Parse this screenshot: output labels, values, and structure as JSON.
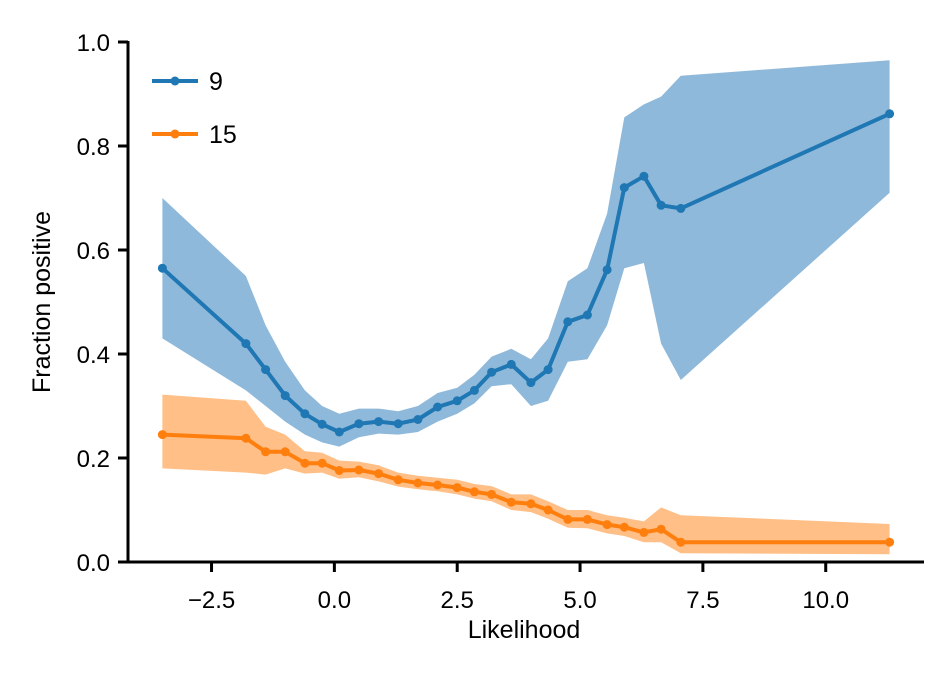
{
  "chart_data": {
    "type": "line",
    "xlabel": "Likelihood",
    "ylabel": "Fraction positive",
    "xlim": [
      -4.2,
      12.0
    ],
    "ylim": [
      0.0,
      1.0
    ],
    "xticks": [
      -2.5,
      0.0,
      2.5,
      5.0,
      7.5,
      10.0
    ],
    "xtick_labels": [
      "−2.5",
      "0.0",
      "2.5",
      "5.0",
      "7.5",
      "10.0"
    ],
    "yticks": [
      0.0,
      0.2,
      0.4,
      0.6,
      0.8,
      1.0
    ],
    "ytick_labels": [
      "0.0",
      "0.2",
      "0.4",
      "0.6",
      "0.8",
      "1.0"
    ],
    "grid": false,
    "legend_position": "top-left",
    "series": [
      {
        "name": "9",
        "color": "#1f77b4",
        "band_color": "#8fb9da",
        "x": [
          -3.5,
          -1.8,
          -1.4,
          -1.0,
          -0.6,
          -0.25,
          0.1,
          0.5,
          0.9,
          1.3,
          1.7,
          2.1,
          2.5,
          2.85,
          3.2,
          3.6,
          4.0,
          4.35,
          4.75,
          5.15,
          5.55,
          5.9,
          6.3,
          6.65,
          7.05,
          11.3
        ],
        "y": [
          0.565,
          0.42,
          0.37,
          0.32,
          0.285,
          0.265,
          0.25,
          0.266,
          0.27,
          0.266,
          0.274,
          0.298,
          0.31,
          0.33,
          0.365,
          0.38,
          0.345,
          0.37,
          0.462,
          0.475,
          0.562,
          0.72,
          0.742,
          0.686,
          0.68,
          0.862
        ],
        "lower": [
          0.43,
          0.33,
          0.3,
          0.27,
          0.245,
          0.23,
          0.222,
          0.24,
          0.247,
          0.245,
          0.25,
          0.27,
          0.285,
          0.305,
          0.338,
          0.342,
          0.3,
          0.31,
          0.385,
          0.39,
          0.455,
          0.565,
          0.575,
          0.42,
          0.35,
          0.71
        ],
        "upper": [
          0.7,
          0.55,
          0.455,
          0.385,
          0.33,
          0.3,
          0.285,
          0.295,
          0.295,
          0.29,
          0.3,
          0.325,
          0.335,
          0.36,
          0.395,
          0.41,
          0.39,
          0.43,
          0.54,
          0.565,
          0.67,
          0.855,
          0.88,
          0.895,
          0.935,
          0.965
        ]
      },
      {
        "name": "15",
        "color": "#ff7f0e",
        "band_color": "#ffbf86",
        "x": [
          -3.5,
          -1.8,
          -1.4,
          -1.0,
          -0.6,
          -0.25,
          0.1,
          0.5,
          0.9,
          1.3,
          1.7,
          2.1,
          2.5,
          2.85,
          3.2,
          3.6,
          4.0,
          4.35,
          4.75,
          5.15,
          5.55,
          5.9,
          6.3,
          6.65,
          7.05,
          11.3
        ],
        "y": [
          0.245,
          0.238,
          0.212,
          0.212,
          0.19,
          0.19,
          0.176,
          0.177,
          0.17,
          0.158,
          0.152,
          0.148,
          0.143,
          0.135,
          0.13,
          0.115,
          0.112,
          0.1,
          0.082,
          0.082,
          0.072,
          0.067,
          0.057,
          0.063,
          0.038,
          0.038
        ],
        "lower": [
          0.18,
          0.172,
          0.168,
          0.18,
          0.17,
          0.172,
          0.16,
          0.163,
          0.155,
          0.145,
          0.14,
          0.136,
          0.13,
          0.122,
          0.117,
          0.1,
          0.096,
          0.083,
          0.066,
          0.065,
          0.055,
          0.05,
          0.038,
          0.038,
          0.017,
          0.015
        ],
        "upper": [
          0.322,
          0.31,
          0.26,
          0.245,
          0.213,
          0.21,
          0.195,
          0.193,
          0.186,
          0.172,
          0.166,
          0.162,
          0.158,
          0.15,
          0.146,
          0.13,
          0.13,
          0.117,
          0.1,
          0.1,
          0.09,
          0.085,
          0.078,
          0.105,
          0.09,
          0.073
        ]
      }
    ]
  }
}
